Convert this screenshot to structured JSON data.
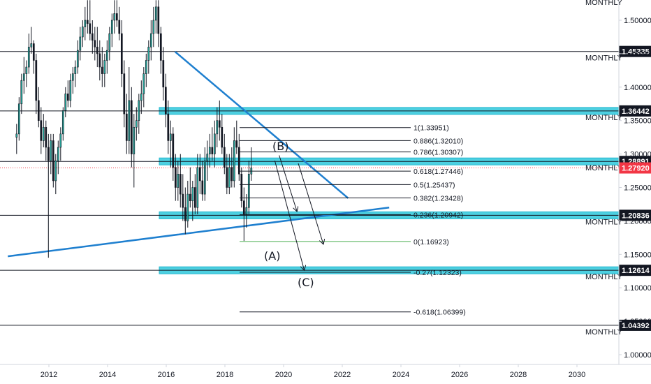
{
  "chart_data": {
    "type": "candlestick",
    "title": "",
    "xlabel": "",
    "ylabel": "",
    "x_ticks": [
      "2012",
      "2014",
      "2016",
      "2018",
      "2020",
      "2022",
      "2024",
      "2026",
      "2028",
      "2030"
    ],
    "y_ticks": [
      "1.50000",
      "1.45000",
      "1.40000",
      "1.35000",
      "1.30000",
      "1.25000",
      "1.20000",
      "1.15000",
      "1.10000",
      "1.05000",
      "1.00000"
    ],
    "ylim": [
      0.98,
      1.53
    ],
    "xlim": [
      2010.4,
      2031.4
    ],
    "grid": false,
    "colors": {
      "up": "#26a69a",
      "down": "#131722",
      "zone": "#4dd0e1",
      "trendline": "#1e7fcf",
      "current": "#f23645",
      "fib_zero": "#4caf50",
      "badge": "#131722"
    },
    "monthly_levels": [
      {
        "label": "MONTHLY",
        "price": 1.54,
        "badge": ""
      },
      {
        "label": "MONTHLY",
        "price": 1.45335,
        "badge": "1.45335"
      },
      {
        "label": "MONTHLY",
        "price": 1.36442,
        "badge": "1.36442",
        "zone": true
      },
      {
        "label": "MONTHLY",
        "price": 1.28891,
        "badge": "1.28891",
        "zone": true
      },
      {
        "label": "MONTHLY",
        "price": 1.20836,
        "badge": "1.20836",
        "zone": true
      },
      {
        "label": "MONTHLY",
        "price": 1.12614,
        "badge": "1.12614",
        "zone": true
      },
      {
        "label": "MONTHLY",
        "price": 1.04392,
        "badge": "1.04392"
      }
    ],
    "current_price": {
      "value": 1.2792,
      "label": "1.27920"
    },
    "fib_levels": [
      {
        "label": "1(1.33951)",
        "price": 1.33951
      },
      {
        "label": "0.886(1.32010)",
        "price": 1.3201
      },
      {
        "label": "0.786(1.30307)",
        "price": 1.30307
      },
      {
        "label": "0.618(1.27446)",
        "price": 1.27446
      },
      {
        "label": "0.5(1.25437)",
        "price": 1.25437
      },
      {
        "label": "0.382(1.23428)",
        "price": 1.23428
      },
      {
        "label": "0.236(1.20942)",
        "price": 1.20942
      },
      {
        "label": "0(1.16923)",
        "price": 1.16923
      },
      {
        "label": "-0.27(1.12323)",
        "price": 1.12323
      },
      {
        "label": "-0.618(1.06399)",
        "price": 1.06399
      }
    ],
    "wave_labels": [
      "(A)",
      "(B)",
      "(C)"
    ],
    "trendlines": [
      {
        "name": "descending",
        "x": [
          2016.3,
          2022.2
        ],
        "y": [
          1.453,
          1.234
        ]
      },
      {
        "name": "ascending",
        "x": [
          2010.6,
          2023.6
        ],
        "y": [
          1.147,
          1.22
        ]
      }
    ],
    "projection_arrows": [
      {
        "x": [
          2019.85,
          2020.45
        ],
        "y": [
          1.298,
          1.215
        ]
      },
      {
        "x": [
          2020.5,
          2021.35
        ],
        "y": [
          1.286,
          1.166
        ]
      },
      {
        "x": [
          2019.7,
          2020.7
        ],
        "y": [
          1.29,
          1.127
        ]
      }
    ],
    "candles": [
      [
        1.325,
        1.345,
        1.3,
        1.33
      ],
      [
        1.33,
        1.385,
        1.32,
        1.375
      ],
      [
        1.375,
        1.42,
        1.36,
        1.41
      ],
      [
        1.41,
        1.445,
        1.39,
        1.42
      ],
      [
        1.42,
        1.44,
        1.4,
        1.43
      ],
      [
        1.43,
        1.48,
        1.42,
        1.46
      ],
      [
        1.46,
        1.49,
        1.45,
        1.465
      ],
      [
        1.465,
        1.47,
        1.42,
        1.44
      ],
      [
        1.44,
        1.45,
        1.36,
        1.38
      ],
      [
        1.38,
        1.4,
        1.34,
        1.35
      ],
      [
        1.35,
        1.37,
        1.3,
        1.32
      ],
      [
        1.32,
        1.36,
        1.31,
        1.34
      ],
      [
        1.34,
        1.35,
        1.29,
        1.31
      ],
      [
        1.31,
        1.33,
        1.145,
        1.29
      ],
      [
        1.29,
        1.33,
        1.27,
        1.32
      ],
      [
        1.32,
        1.33,
        1.25,
        1.26
      ],
      [
        1.26,
        1.3,
        1.24,
        1.29
      ],
      [
        1.29,
        1.32,
        1.27,
        1.31
      ],
      [
        1.31,
        1.34,
        1.29,
        1.33
      ],
      [
        1.33,
        1.37,
        1.32,
        1.365
      ],
      [
        1.365,
        1.4,
        1.355,
        1.39
      ],
      [
        1.39,
        1.41,
        1.37,
        1.38
      ],
      [
        1.38,
        1.42,
        1.37,
        1.41
      ],
      [
        1.41,
        1.43,
        1.39,
        1.42
      ],
      [
        1.42,
        1.44,
        1.4,
        1.43
      ],
      [
        1.43,
        1.47,
        1.42,
        1.455
      ],
      [
        1.455,
        1.49,
        1.44,
        1.475
      ],
      [
        1.475,
        1.5,
        1.46,
        1.49
      ],
      [
        1.49,
        1.52,
        1.47,
        1.5
      ],
      [
        1.5,
        1.53,
        1.48,
        1.495
      ],
      [
        1.495,
        1.53,
        1.47,
        1.48
      ],
      [
        1.48,
        1.5,
        1.45,
        1.47
      ],
      [
        1.47,
        1.49,
        1.44,
        1.46
      ],
      [
        1.46,
        1.49,
        1.43,
        1.45
      ],
      [
        1.45,
        1.47,
        1.41,
        1.43
      ],
      [
        1.43,
        1.46,
        1.4,
        1.42
      ],
      [
        1.42,
        1.45,
        1.4,
        1.44
      ],
      [
        1.44,
        1.47,
        1.42,
        1.455
      ],
      [
        1.455,
        1.49,
        1.44,
        1.48
      ],
      [
        1.48,
        1.51,
        1.46,
        1.5
      ],
      [
        1.5,
        1.53,
        1.48,
        1.51
      ],
      [
        1.51,
        1.53,
        1.49,
        1.5
      ],
      [
        1.5,
        1.52,
        1.47,
        1.48
      ],
      [
        1.48,
        1.5,
        1.4,
        1.42
      ],
      [
        1.42,
        1.44,
        1.34,
        1.36
      ],
      [
        1.36,
        1.39,
        1.3,
        1.32
      ],
      [
        1.32,
        1.43,
        1.3,
        1.38
      ],
      [
        1.38,
        1.4,
        1.28,
        1.3
      ],
      [
        1.3,
        1.36,
        1.25,
        1.34
      ],
      [
        1.34,
        1.37,
        1.32,
        1.35
      ],
      [
        1.35,
        1.39,
        1.33,
        1.38
      ],
      [
        1.38,
        1.41,
        1.36,
        1.39
      ],
      [
        1.39,
        1.43,
        1.37,
        1.42
      ],
      [
        1.42,
        1.45,
        1.4,
        1.44
      ],
      [
        1.44,
        1.47,
        1.42,
        1.46
      ],
      [
        1.46,
        1.5,
        1.44,
        1.48
      ],
      [
        1.48,
        1.52,
        1.46,
        1.5
      ],
      [
        1.5,
        1.53,
        1.48,
        1.52
      ],
      [
        1.52,
        1.53,
        1.46,
        1.48
      ],
      [
        1.48,
        1.49,
        1.42,
        1.44
      ],
      [
        1.44,
        1.46,
        1.38,
        1.4
      ],
      [
        1.4,
        1.42,
        1.34,
        1.36
      ],
      [
        1.36,
        1.38,
        1.3,
        1.32
      ],
      [
        1.32,
        1.35,
        1.28,
        1.33
      ],
      [
        1.33,
        1.34,
        1.26,
        1.28
      ],
      [
        1.28,
        1.3,
        1.23,
        1.25
      ],
      [
        1.25,
        1.29,
        1.23,
        1.27
      ],
      [
        1.27,
        1.3,
        1.22,
        1.24
      ],
      [
        1.24,
        1.27,
        1.2,
        1.22
      ],
      [
        1.22,
        1.25,
        1.18,
        1.2
      ],
      [
        1.2,
        1.26,
        1.19,
        1.24
      ],
      [
        1.24,
        1.28,
        1.22,
        1.23
      ],
      [
        1.23,
        1.26,
        1.2,
        1.25
      ],
      [
        1.25,
        1.27,
        1.21,
        1.22
      ],
      [
        1.22,
        1.3,
        1.21,
        1.28
      ],
      [
        1.28,
        1.3,
        1.24,
        1.26
      ],
      [
        1.26,
        1.29,
        1.23,
        1.24
      ],
      [
        1.24,
        1.31,
        1.23,
        1.29
      ],
      [
        1.29,
        1.32,
        1.26,
        1.3
      ],
      [
        1.3,
        1.33,
        1.28,
        1.31
      ],
      [
        1.31,
        1.34,
        1.29,
        1.3
      ],
      [
        1.3,
        1.35,
        1.28,
        1.33
      ],
      [
        1.33,
        1.37,
        1.31,
        1.35
      ],
      [
        1.35,
        1.38,
        1.32,
        1.34
      ],
      [
        1.34,
        1.36,
        1.3,
        1.31
      ],
      [
        1.31,
        1.33,
        1.27,
        1.28
      ],
      [
        1.28,
        1.3,
        1.24,
        1.25
      ],
      [
        1.25,
        1.3,
        1.24,
        1.28
      ],
      [
        1.28,
        1.31,
        1.25,
        1.26
      ],
      [
        1.26,
        1.34,
        1.25,
        1.32
      ],
      [
        1.32,
        1.35,
        1.3,
        1.31
      ],
      [
        1.31,
        1.33,
        1.26,
        1.27
      ],
      [
        1.27,
        1.28,
        1.22,
        1.23
      ],
      [
        1.23,
        1.25,
        1.17,
        1.21
      ],
      [
        1.21,
        1.24,
        1.19,
        1.22
      ],
      [
        1.22,
        1.29,
        1.21,
        1.27
      ],
      [
        1.27,
        1.31,
        1.26,
        1.2792
      ]
    ]
  }
}
